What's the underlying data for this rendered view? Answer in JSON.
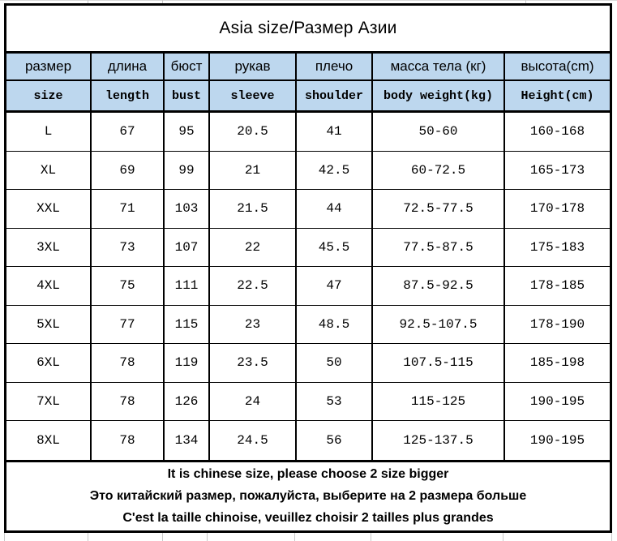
{
  "title": "Asia size/Размер Азии",
  "table": {
    "header_ru": [
      "размер",
      "длина",
      "бюст",
      "рукав",
      "плечо",
      "масса тела (кг)",
      "высота(cm)"
    ],
    "header_en": [
      "size",
      "length",
      "bust",
      "sleeve",
      "shoulder",
      "body weight(kg)",
      "Height(cm)"
    ],
    "rows": [
      [
        "L",
        "67",
        "95",
        "20.5",
        "41",
        "50-60",
        "160-168"
      ],
      [
        "XL",
        "69",
        "99",
        "21",
        "42.5",
        "60-72.5",
        "165-173"
      ],
      [
        "XXL",
        "71",
        "103",
        "21.5",
        "44",
        "72.5-77.5",
        "170-178"
      ],
      [
        "3XL",
        "73",
        "107",
        "22",
        "45.5",
        "77.5-87.5",
        "175-183"
      ],
      [
        "4XL",
        "75",
        "111",
        "22.5",
        "47",
        "87.5-92.5",
        "178-185"
      ],
      [
        "5XL",
        "77",
        "115",
        "23",
        "48.5",
        "92.5-107.5",
        "178-190"
      ],
      [
        "6XL",
        "78",
        "119",
        "23.5",
        "50",
        "107.5-115",
        "185-198"
      ],
      [
        "7XL",
        "78",
        "126",
        "24",
        "53",
        "115-125",
        "190-195"
      ],
      [
        "8XL",
        "78",
        "134",
        "24.5",
        "56",
        "125-137.5",
        "190-195"
      ]
    ],
    "notes": [
      "It is chinese size, please choose 2 size bigger",
      "Это китайский размер, пожалуйста, выберите на 2 размера больше",
      "C'est la taille chinoise, veuillez choisir 2 tailles plus grandes"
    ]
  },
  "colors": {
    "header_bg": "#bdd7ee",
    "border": "#000000",
    "gridline": "#c9c9c9"
  }
}
